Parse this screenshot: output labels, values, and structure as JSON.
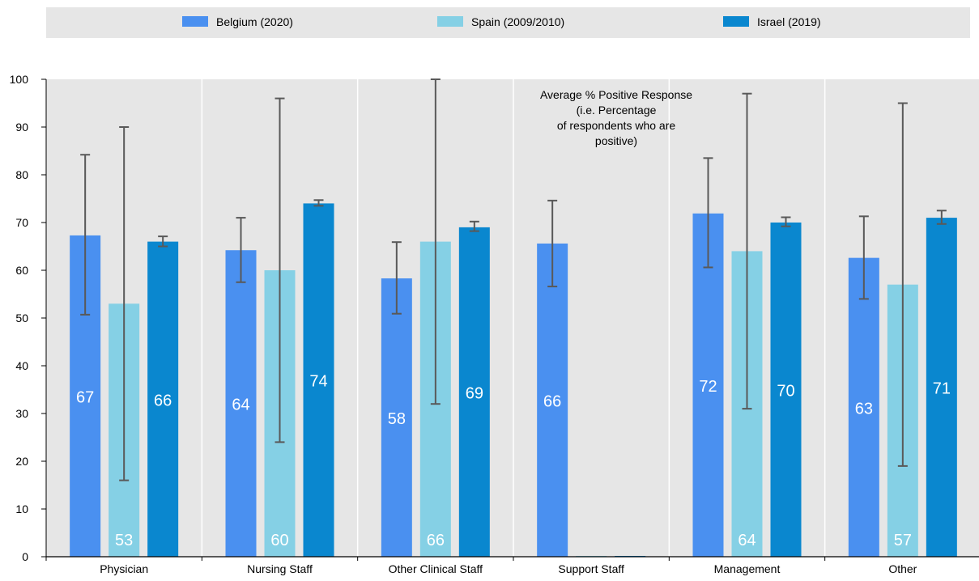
{
  "chart_data": {
    "type": "bar",
    "title": "",
    "xlabel": "",
    "ylabel": "",
    "ylim": [
      0,
      100
    ],
    "yticks": [
      0,
      10,
      20,
      30,
      40,
      50,
      60,
      70,
      80,
      90,
      100
    ],
    "grid": "vertical separators between categories",
    "legend_position": "top",
    "annotation": [
      "Average % Positive Response",
      "(i.e. Percentage",
      "of respondents who are",
      "positive)"
    ],
    "categories": [
      "Physician",
      "Nursing Staff",
      "Other Clinical Staff",
      "Support Staff",
      "Management",
      "Other"
    ],
    "series": [
      {
        "name": "Belgium (2020)",
        "color": "#4a90f0",
        "values": [
          67.3,
          64.2,
          58.3,
          65.6,
          71.9,
          62.6
        ],
        "labels": [
          "67",
          "64",
          "58",
          "66",
          "72",
          "63"
        ],
        "error_low": [
          50.7,
          57.5,
          50.9,
          56.6,
          60.6,
          54.0
        ],
        "error_high": [
          84.2,
          71.0,
          65.9,
          74.6,
          83.5,
          71.3
        ]
      },
      {
        "name": "Spain (2009/2010)",
        "color": "#85d0e5",
        "values": [
          53,
          60,
          66,
          null,
          64,
          57
        ],
        "labels": [
          "53",
          "60",
          "66",
          "",
          "64",
          "57"
        ],
        "error_low": [
          16,
          24,
          32,
          null,
          31,
          19
        ],
        "error_high": [
          90,
          96,
          100,
          null,
          97,
          95
        ]
      },
      {
        "name": "Israel (2019)",
        "color": "#0a87cf",
        "values": [
          66,
          74,
          69,
          null,
          70,
          71
        ],
        "labels": [
          "66",
          "74",
          "69",
          "",
          "70",
          "71"
        ],
        "error_low": [
          65,
          73.5,
          68.2,
          null,
          69.2,
          69.7
        ],
        "error_high": [
          67.1,
          74.7,
          70.2,
          null,
          71.1,
          72.5
        ]
      }
    ]
  }
}
